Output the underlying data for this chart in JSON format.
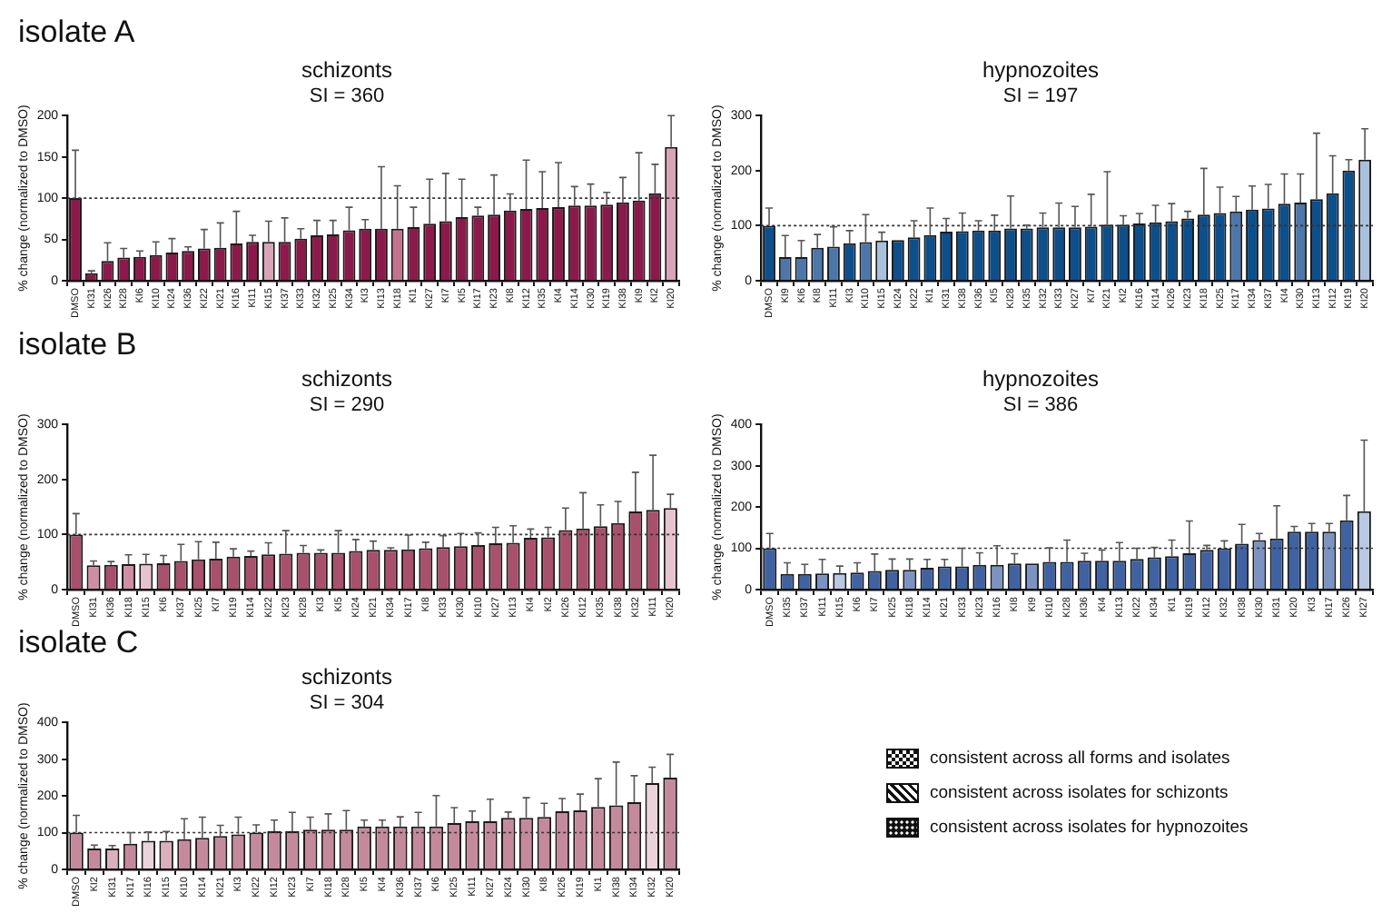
{
  "chart_data": [
    {
      "type": "bar",
      "title": "schizonts",
      "subtitle": "SI = 360",
      "ylabel": "% change (normalized to DMSO)",
      "annotations": [
        "isolate A"
      ],
      "categories": [
        "DMSO",
        "KI31",
        "KI26",
        "KI28",
        "KI6",
        "KI10",
        "KI24",
        "KI36",
        "KI22",
        "KI21",
        "KI16",
        "KI11",
        "KI15",
        "KI37",
        "KI33",
        "KI32",
        "KI25",
        "KI34",
        "KI3",
        "KI13",
        "KI18",
        "KI1",
        "KI27",
        "KI7",
        "KI5",
        "KI17",
        "KI23",
        "KI8",
        "KI12",
        "KI35",
        "KI4",
        "KI14",
        "KI30",
        "KI19",
        "KI38",
        "KI9",
        "KI2",
        "KI20"
      ],
      "values": [
        100,
        9,
        24,
        28,
        29,
        31,
        34,
        36,
        39,
        40,
        45,
        47,
        47,
        47,
        51,
        55,
        56,
        61,
        63,
        63,
        63,
        65,
        69,
        72,
        77,
        79,
        80,
        85,
        87,
        88,
        89,
        91,
        91,
        92,
        95,
        97,
        106,
        162
      ],
      "errors": [
        [
          100,
          158
        ],
        [
          9,
          12
        ],
        [
          24,
          46
        ],
        [
          28,
          39
        ],
        [
          29,
          36
        ],
        [
          31,
          47
        ],
        [
          34,
          51
        ],
        [
          36,
          41
        ],
        [
          39,
          62
        ],
        [
          40,
          70
        ],
        [
          45,
          84
        ],
        [
          47,
          55
        ],
        [
          47,
          72
        ],
        [
          47,
          76
        ],
        [
          51,
          63
        ],
        [
          55,
          73
        ],
        [
          56,
          73
        ],
        [
          61,
          89
        ],
        [
          63,
          74
        ],
        [
          63,
          138
        ],
        [
          63,
          115
        ],
        [
          65,
          89
        ],
        [
          69,
          123
        ],
        [
          72,
          130
        ],
        [
          77,
          123
        ],
        [
          79,
          89
        ],
        [
          80,
          128
        ],
        [
          85,
          105
        ],
        [
          87,
          146
        ],
        [
          88,
          132
        ],
        [
          89,
          143
        ],
        [
          91,
          114
        ],
        [
          91,
          117
        ],
        [
          92,
          107
        ],
        [
          95,
          125
        ],
        [
          97,
          155
        ],
        [
          106,
          141
        ],
        [
          162,
          200
        ]
      ],
      "colors": [
        "#8b1a4a",
        "#8b1a4a",
        "#8b1a4a",
        "#8b1a4a",
        "#8b1a4a",
        "#8b1a4a",
        "#8b1a4a",
        "#8b1a4a",
        "#8b1a4a",
        "#8b1a4a",
        "#8b1a4a",
        "#8b1a4a",
        "#d9a3b8",
        "#8b1a4a",
        "#8b1a4a",
        "#8b1a4a",
        "#8b1a4a",
        "#8b1a4a",
        "#8b1a4a",
        "#8b1a4a",
        "#c4738f",
        "#8b1a4a",
        "#8b1a4a",
        "#8b1a4a",
        "#8b1a4a",
        "#8b1a4a",
        "#8b1a4a",
        "#8b1a4a",
        "#8b1a4a",
        "#8b1a4a",
        "#8b1a4a",
        "#8b1a4a",
        "#8b1a4a",
        "#8b1a4a",
        "#8b1a4a",
        "#8b1a4a",
        "#8b1a4a",
        "#d9a3b8"
      ],
      "ylim": [
        0,
        200
      ],
      "yticks": [
        0,
        50,
        100,
        150,
        200
      ],
      "grid": false,
      "ref_lines": [
        {
          "axis": "y",
          "value": 100,
          "line_style": "dotted"
        }
      ]
    },
    {
      "type": "bar",
      "title": "hypnozoites",
      "subtitle": "SI = 197",
      "ylabel": "% change (normalized to DMSO)",
      "categories": [
        "DMSO",
        "KI9",
        "KI6",
        "KI8",
        "KI11",
        "KI3",
        "KI10",
        "KI15",
        "KI24",
        "KI22",
        "KI1",
        "KI31",
        "KI38",
        "KI36",
        "KI5",
        "KI28",
        "KI35",
        "KI32",
        "KI33",
        "KI27",
        "KI7",
        "KI21",
        "KI2",
        "KI16",
        "KI14",
        "KI26",
        "KI23",
        "KI18",
        "KI25",
        "KI17",
        "KI34",
        "KI37",
        "KI4",
        "KI30",
        "KI13",
        "KI12",
        "KI19",
        "KI20"
      ],
      "values": [
        100,
        43,
        43,
        60,
        62,
        68,
        70,
        73,
        74,
        79,
        83,
        89,
        90,
        91,
        91,
        95,
        95,
        97,
        97,
        97,
        98,
        102,
        102,
        104,
        106,
        108,
        113,
        120,
        123,
        126,
        129,
        131,
        140,
        142,
        148,
        159,
        200,
        220
      ],
      "errors": [
        [
          100,
          132
        ],
        [
          43,
          82
        ],
        [
          43,
          73
        ],
        [
          60,
          84
        ],
        [
          62,
          98
        ],
        [
          68,
          91
        ],
        [
          70,
          120
        ],
        [
          73,
          88
        ],
        null,
        [
          79,
          109
        ],
        [
          83,
          132
        ],
        [
          89,
          113
        ],
        [
          90,
          123
        ],
        [
          91,
          109
        ],
        [
          91,
          119
        ],
        [
          95,
          154
        ],
        [
          95,
          101
        ],
        [
          97,
          123
        ],
        [
          97,
          141
        ],
        [
          97,
          135
        ],
        [
          98,
          157
        ],
        [
          102,
          198
        ],
        [
          102,
          118
        ],
        [
          104,
          122
        ],
        [
          106,
          137
        ],
        [
          108,
          140
        ],
        [
          113,
          126
        ],
        [
          120,
          204
        ],
        [
          123,
          170
        ],
        [
          126,
          153
        ],
        [
          129,
          172
        ],
        [
          131,
          175
        ],
        [
          140,
          194
        ],
        [
          142,
          194
        ],
        [
          148,
          268
        ],
        [
          159,
          227
        ],
        [
          200,
          220
        ],
        [
          220,
          276
        ]
      ],
      "colors": [
        "#0d4f8b",
        "#4d77a8",
        "#4d77a8",
        "#4d77a8",
        "#4d77a8",
        "#0d4f8b",
        "#4d77a8",
        "#a9c1dc",
        "#0d4f8b",
        "#0d4f8b",
        "#0d4f8b",
        "#0d4f8b",
        "#0d4f8b",
        "#0d4f8b",
        "#0d4f8b",
        "#0d4f8b",
        "#0d4f8b",
        "#0d4f8b",
        "#0d4f8b",
        "#0d4f8b",
        "#0d4f8b",
        "#0d4f8b",
        "#0d4f8b",
        "#0d4f8b",
        "#0d4f8b",
        "#0d4f8b",
        "#0d4f8b",
        "#0d4f8b",
        "#0d4f8b",
        "#4d77a8",
        "#0d4f8b",
        "#0d4f8b",
        "#0d4f8b",
        "#4d77a8",
        "#0d4f8b",
        "#0d4f8b",
        "#0d4f8b",
        "#a9c1dc"
      ],
      "ylim": [
        0,
        300
      ],
      "yticks": [
        0,
        100,
        200,
        300
      ],
      "grid": false,
      "ref_lines": [
        {
          "axis": "y",
          "value": 100,
          "line_style": "dotted"
        }
      ]
    },
    {
      "type": "bar",
      "title": "schizonts",
      "subtitle": "SI = 290",
      "ylabel": "% change (normalized to DMSO)",
      "annotations": [
        "isolate B"
      ],
      "categories": [
        "DMSO",
        "KI31",
        "KI36",
        "KI18",
        "KI15",
        "KI6",
        "KI37",
        "KI25",
        "KI7",
        "KI19",
        "KI14",
        "KI22",
        "KI23",
        "KI28",
        "KI3",
        "KI5",
        "KI24",
        "KI21",
        "KI34",
        "KI17",
        "KI8",
        "KI33",
        "KI30",
        "KI10",
        "KI27",
        "KI13",
        "KI4",
        "KI2",
        "KI26",
        "KI12",
        "KI35",
        "KI38",
        "KI32",
        "KI11",
        "KI20"
      ],
      "values": [
        100,
        44,
        45,
        46,
        47,
        48,
        52,
        55,
        56,
        60,
        61,
        64,
        65,
        67,
        67,
        67,
        70,
        72,
        72,
        73,
        75,
        77,
        79,
        81,
        84,
        85,
        94,
        95,
        108,
        111,
        115,
        121,
        142,
        145,
        148
      ],
      "errors": [
        [
          100,
          138
        ],
        [
          44,
          52
        ],
        [
          45,
          51
        ],
        [
          46,
          63
        ],
        [
          47,
          64
        ],
        [
          48,
          62
        ],
        [
          52,
          82
        ],
        [
          55,
          87
        ],
        [
          56,
          86
        ],
        [
          60,
          74
        ],
        [
          61,
          70
        ],
        [
          64,
          85
        ],
        [
          65,
          107
        ],
        [
          67,
          80
        ],
        [
          67,
          72
        ],
        [
          67,
          107
        ],
        [
          70,
          91
        ],
        [
          72,
          88
        ],
        [
          72,
          76
        ],
        [
          73,
          99
        ],
        [
          75,
          86
        ],
        [
          77,
          98
        ],
        [
          79,
          102
        ],
        [
          81,
          103
        ],
        [
          84,
          113
        ],
        [
          85,
          116
        ],
        [
          94,
          110
        ],
        [
          95,
          113
        ],
        [
          108,
          148
        ],
        [
          111,
          176
        ],
        [
          115,
          154
        ],
        [
          121,
          160
        ],
        [
          142,
          213
        ],
        [
          145,
          244
        ],
        [
          148,
          173
        ]
      ],
      "colors": [
        "#a8506c",
        "#cf8ea2",
        "#a8506c",
        "#cf8ea2",
        "#e6c3cf",
        "#a8506c",
        "#a8506c",
        "#a8506c",
        "#a8506c",
        "#a8506c",
        "#a8506c",
        "#a8506c",
        "#a8506c",
        "#a8506c",
        "#a8506c",
        "#a8506c",
        "#a8506c",
        "#a8506c",
        "#a8506c",
        "#a8506c",
        "#a8506c",
        "#a8506c",
        "#a8506c",
        "#a8506c",
        "#a8506c",
        "#a8506c",
        "#a8506c",
        "#a8506c",
        "#a8506c",
        "#a8506c",
        "#a8506c",
        "#a8506c",
        "#a8506c",
        "#a8506c",
        "#e6c3cf"
      ],
      "ylim": [
        0,
        300
      ],
      "yticks": [
        0,
        100,
        200,
        300
      ],
      "grid": false,
      "ref_lines": [
        {
          "axis": "y",
          "value": 100,
          "line_style": "dotted"
        }
      ]
    },
    {
      "type": "bar",
      "title": "hypnozoites",
      "subtitle": "SI = 386",
      "ylabel": "% change (normalized to DMSO)",
      "categories": [
        "DMSO",
        "KI35",
        "KI37",
        "KI11",
        "KI15",
        "KI6",
        "KI7",
        "KI25",
        "KI18",
        "KI14",
        "KI21",
        "KI33",
        "KI23",
        "KI16",
        "KI8",
        "KI9",
        "KI10",
        "KI28",
        "KI36",
        "KI4",
        "KI13",
        "KI22",
        "KI34",
        "KI1",
        "KI19",
        "KI12",
        "KI32",
        "KI38",
        "KI30",
        "KI31",
        "KI20",
        "KI3",
        "KI17",
        "KI26",
        "KI27"
      ],
      "values": [
        100,
        38,
        38,
        39,
        40,
        41,
        45,
        48,
        48,
        53,
        56,
        56,
        60,
        60,
        63,
        63,
        67,
        67,
        70,
        70,
        70,
        74,
        78,
        81,
        88,
        96,
        100,
        111,
        120,
        124,
        140,
        140,
        140,
        168,
        190
      ],
      "errors": [
        [
          100,
          136
        ],
        [
          38,
          65
        ],
        [
          38,
          61
        ],
        [
          39,
          73
        ],
        [
          40,
          57
        ],
        [
          41,
          65
        ],
        [
          45,
          86
        ],
        [
          48,
          74
        ],
        [
          48,
          74
        ],
        [
          53,
          73
        ],
        [
          56,
          73
        ],
        [
          56,
          100
        ],
        [
          60,
          89
        ],
        [
          60,
          106
        ],
        [
          63,
          87
        ],
        null,
        [
          67,
          101
        ],
        [
          67,
          120
        ],
        [
          70,
          88
        ],
        [
          70,
          96
        ],
        [
          70,
          114
        ],
        [
          74,
          100
        ],
        [
          78,
          102
        ],
        [
          81,
          120
        ],
        [
          88,
          166
        ],
        [
          96,
          107
        ],
        [
          100,
          118
        ],
        [
          111,
          158
        ],
        [
          120,
          136
        ],
        [
          124,
          203
        ],
        [
          140,
          153
        ],
        [
          140,
          160
        ],
        [
          140,
          160
        ],
        [
          168,
          228
        ],
        [
          190,
          362
        ]
      ],
      "colors": [
        "#3f62a3",
        "#3f62a3",
        "#3f62a3",
        "#7b93c2",
        "#b9c8e3",
        "#3f62a3",
        "#3f62a3",
        "#3f62a3",
        "#7b93c2",
        "#3f62a3",
        "#3f62a3",
        "#3f62a3",
        "#3f62a3",
        "#7b93c2",
        "#3f62a3",
        "#7b93c2",
        "#3f62a3",
        "#3f62a3",
        "#3f62a3",
        "#3f62a3",
        "#3f62a3",
        "#3f62a3",
        "#3f62a3",
        "#3f62a3",
        "#3f62a3",
        "#3f62a3",
        "#3f62a3",
        "#3f62a3",
        "#7b93c2",
        "#3f62a3",
        "#3f62a3",
        "#3f62a3",
        "#7b93c2",
        "#3f62a3",
        "#b9c8e3"
      ],
      "ylim": [
        0,
        400
      ],
      "yticks": [
        0,
        100,
        200,
        300,
        400
      ],
      "grid": false,
      "ref_lines": [
        {
          "axis": "y",
          "value": 100,
          "line_style": "dotted"
        }
      ]
    },
    {
      "type": "bar",
      "title": "schizonts",
      "subtitle": "SI = 304",
      "ylabel": "% change (normalized to DMSO)",
      "annotations": [
        "isolate C"
      ],
      "categories": [
        "DMSO",
        "KI2",
        "KI31",
        "KI17",
        "KI16",
        "KI15",
        "KI10",
        "KI14",
        "KI21",
        "KI3",
        "KI22",
        "KI12",
        "KI23",
        "KI7",
        "KI18",
        "KI28",
        "KI5",
        "KI4",
        "KI36",
        "KI37",
        "KI6",
        "KI25",
        "KI11",
        "KI27",
        "KI24",
        "KI30",
        "KI8",
        "KI26",
        "KI19",
        "KI1",
        "KI38",
        "KI34",
        "KI32",
        "KI20"
      ],
      "values": [
        100,
        57,
        57,
        70,
        78,
        78,
        82,
        86,
        91,
        95,
        100,
        104,
        104,
        108,
        108,
        108,
        117,
        117,
        117,
        117,
        117,
        126,
        131,
        131,
        140,
        140,
        143,
        158,
        161,
        170,
        174,
        183,
        235,
        250
      ],
      "errors": [
        [
          100,
          147
        ],
        [
          57,
          66
        ],
        [
          57,
          65
        ],
        [
          70,
          100
        ],
        [
          78,
          102
        ],
        [
          78,
          103
        ],
        [
          82,
          138
        ],
        [
          86,
          142
        ],
        [
          91,
          120
        ],
        [
          95,
          142
        ],
        [
          100,
          121
        ],
        [
          104,
          134
        ],
        [
          104,
          155
        ],
        [
          108,
          142
        ],
        [
          108,
          151
        ],
        [
          108,
          160
        ],
        [
          117,
          134
        ],
        [
          117,
          134
        ],
        [
          117,
          143
        ],
        [
          117,
          155
        ],
        [
          117,
          201
        ],
        [
          126,
          168
        ],
        [
          131,
          159
        ],
        [
          131,
          191
        ],
        [
          140,
          156
        ],
        [
          140,
          195
        ],
        [
          143,
          180
        ],
        [
          158,
          193
        ],
        [
          161,
          205
        ],
        [
          170,
          247
        ],
        [
          174,
          292
        ],
        [
          183,
          255
        ],
        [
          235,
          278
        ],
        [
          250,
          313
        ]
      ],
      "colors": [
        "#c48a9c",
        "#c48a9c",
        "#dbb0bd",
        "#c48a9c",
        "#ecd3db",
        "#dbb0bd",
        "#c48a9c",
        "#c48a9c",
        "#c48a9c",
        "#c48a9c",
        "#c48a9c",
        "#c48a9c",
        "#c48a9c",
        "#c48a9c",
        "#c48a9c",
        "#c48a9c",
        "#c48a9c",
        "#c48a9c",
        "#c48a9c",
        "#c48a9c",
        "#c48a9c",
        "#c48a9c",
        "#c48a9c",
        "#c48a9c",
        "#c48a9c",
        "#c48a9c",
        "#c48a9c",
        "#c48a9c",
        "#c48a9c",
        "#c48a9c",
        "#c48a9c",
        "#c48a9c",
        "#ecd3db",
        "#c48a9c"
      ],
      "ylim": [
        0,
        400
      ],
      "yticks": [
        0,
        100,
        200,
        300,
        400
      ],
      "grid": false,
      "ref_lines": [
        {
          "axis": "y",
          "value": 100,
          "line_style": "dotted"
        }
      ]
    },
    {
      "type": "other",
      "annotations": [
        "consistent across all forms and isolates",
        "consistent across isolates for schizonts",
        "consistent across isolates for hypnozoites"
      ]
    }
  ]
}
